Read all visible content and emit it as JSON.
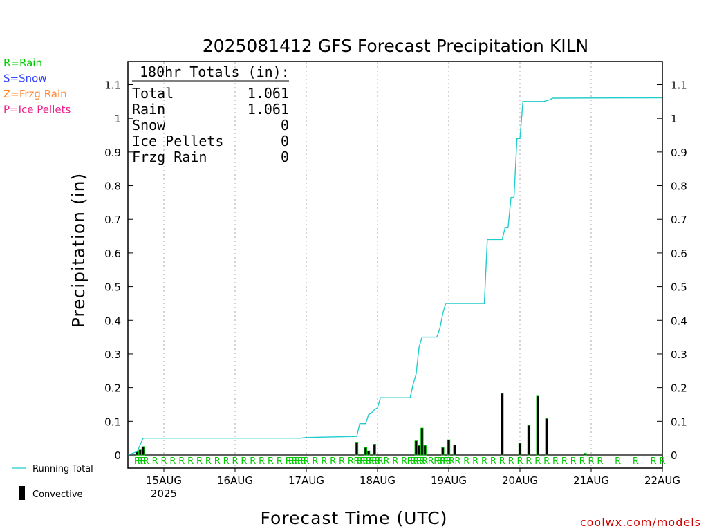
{
  "title": "2025081412 GFS Forecast Precipitation KILN",
  "credit": "coolwx.com/models",
  "ptype_legend": [
    {
      "label": "R=Rain",
      "color": "#00cc00"
    },
    {
      "label": "S=Snow",
      "color": "#3344ff"
    },
    {
      "label": "Z=Frzg Rain",
      "color": "#ff8833"
    },
    {
      "label": "P=Ice Pellets",
      "color": "#ee2288"
    }
  ],
  "totals": {
    "header": "180hr Totals (in):",
    "rows": [
      {
        "label": "Total",
        "value": "1.061"
      },
      {
        "label": "Rain",
        "value": "1.061"
      },
      {
        "label": "Snow",
        "value": "0"
      },
      {
        "label": "Ice Pellets",
        "value": "0"
      },
      {
        "label": "Frzg Rain",
        "value": "0"
      }
    ]
  },
  "bottom_legend": {
    "running_total": "Running Total",
    "convective": "Convective"
  },
  "colors": {
    "running_total": "#22cccc",
    "bar": "#000000",
    "bar_outline": "#00cc00",
    "grid": "#aaaaaa",
    "ptype_letter": "#00cc00"
  },
  "chart_data": {
    "type": "bar",
    "title": "2025081412 GFS Forecast Precipitation KILN",
    "xlabel": "Forecast Time (UTC)",
    "ylabel": "Precipitation (in)",
    "ylim": [
      0,
      1.1
    ],
    "yticks": [
      0,
      0.1,
      0.2,
      0.3,
      0.4,
      0.5,
      0.6,
      0.7,
      0.8,
      0.9,
      1,
      1.1
    ],
    "ytick_labels": [
      "0",
      "0.1",
      "0.2",
      "0.3",
      "0.4",
      "0.5",
      "0.6",
      "0.7",
      "0.8",
      "0.9",
      "1",
      "1.1"
    ],
    "xlim_hours": [
      0,
      180
    ],
    "x_unit": "forecast hours from 2025-08-14 12 UTC",
    "xticks": [
      {
        "hour": 12,
        "label": "15AUG",
        "sublabel": "2025"
      },
      {
        "hour": 36,
        "label": "16AUG",
        "sublabel": ""
      },
      {
        "hour": 60,
        "label": "17AUG",
        "sublabel": ""
      },
      {
        "hour": 84,
        "label": "18AUG",
        "sublabel": ""
      },
      {
        "hour": 108,
        "label": "19AUG",
        "sublabel": ""
      },
      {
        "hour": 132,
        "label": "20AUG",
        "sublabel": ""
      },
      {
        "hour": 156,
        "label": "21AUG",
        "sublabel": ""
      },
      {
        "hour": 180,
        "label": "22AUG",
        "sublabel": ""
      }
    ],
    "grid": "dotted vertical at day boundaries",
    "series": [
      {
        "name": "Running Total",
        "type": "line",
        "points": [
          [
            0,
            0
          ],
          [
            3,
            0.01
          ],
          [
            4,
            0.03
          ],
          [
            5,
            0.05
          ],
          [
            58,
            0.05
          ],
          [
            60,
            0.052
          ],
          [
            77,
            0.055
          ],
          [
            78,
            0.093
          ],
          [
            80,
            0.093
          ],
          [
            81,
            0.12
          ],
          [
            82,
            0.125
          ],
          [
            83,
            0.135
          ],
          [
            84,
            0.14
          ],
          [
            85,
            0.17
          ],
          [
            95,
            0.17
          ],
          [
            96,
            0.21
          ],
          [
            97,
            0.24
          ],
          [
            98,
            0.32
          ],
          [
            99,
            0.35
          ],
          [
            104,
            0.35
          ],
          [
            105,
            0.375
          ],
          [
            106,
            0.42
          ],
          [
            107,
            0.45
          ],
          [
            112,
            0.45
          ],
          [
            120,
            0.45
          ],
          [
            121,
            0.64
          ],
          [
            126,
            0.64
          ],
          [
            127,
            0.675
          ],
          [
            128,
            0.675
          ],
          [
            129,
            0.765
          ],
          [
            130,
            0.765
          ],
          [
            131,
            0.94
          ],
          [
            132,
            0.94
          ],
          [
            133,
            1.05
          ],
          [
            140,
            1.05
          ],
          [
            142,
            1.055
          ],
          [
            143,
            1.06
          ],
          [
            180,
            1.061
          ]
        ]
      },
      {
        "name": "Convective",
        "type": "bar",
        "points": [
          [
            3,
            0.01
          ],
          [
            4,
            0.015
          ],
          [
            5,
            0.025
          ],
          [
            77,
            0.038
          ],
          [
            80,
            0.022
          ],
          [
            81,
            0.012
          ],
          [
            83,
            0.032
          ],
          [
            97,
            0.042
          ],
          [
            98,
            0.028
          ],
          [
            99,
            0.08
          ],
          [
            100,
            0.028
          ],
          [
            106,
            0.022
          ],
          [
            108,
            0.045
          ],
          [
            110,
            0.03
          ],
          [
            126,
            0.183
          ],
          [
            132,
            0.035
          ],
          [
            135,
            0.088
          ],
          [
            138,
            0.175
          ],
          [
            141,
            0.108
          ],
          [
            154,
            0.005
          ]
        ]
      }
    ],
    "ptype_markers": {
      "letter": "R",
      "hours": [
        3,
        4,
        5,
        6,
        9,
        12,
        15,
        18,
        21,
        24,
        27,
        30,
        33,
        36,
        39,
        42,
        45,
        48,
        51,
        54,
        55,
        56,
        57,
        58,
        59,
        60,
        63,
        66,
        69,
        72,
        75,
        77,
        78,
        79,
        80,
        81,
        82,
        83,
        84,
        85,
        87,
        90,
        93,
        95,
        96,
        97,
        98,
        99,
        100,
        102,
        104,
        105,
        106,
        107,
        108,
        109,
        111,
        114,
        117,
        120,
        123,
        126,
        129,
        132,
        135,
        138,
        141,
        144,
        147,
        150,
        153,
        156,
        159,
        165,
        171,
        177,
        180
      ]
    }
  }
}
